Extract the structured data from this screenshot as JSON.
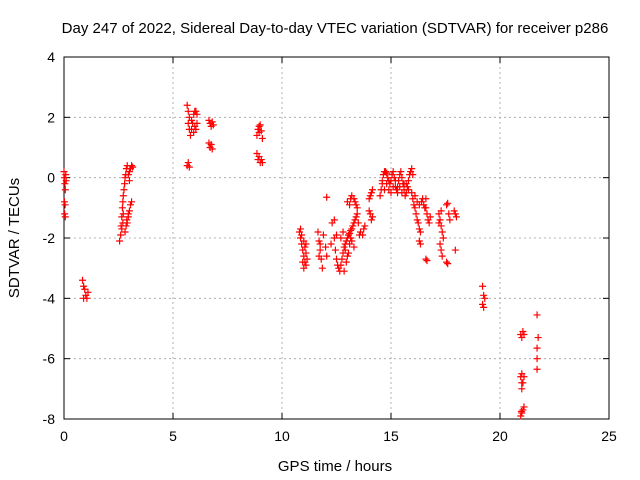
{
  "chart_data": {
    "type": "scatter",
    "title": "Day 247 of 2022, Sidereal Day-to-day VTEC variation (SDTVAR) for receiver p286",
    "xlabel": "GPS time / hours",
    "ylabel": "SDTVAR / TECUs",
    "xlim": [
      0,
      25
    ],
    "ylim": [
      -8,
      4
    ],
    "xticks": [
      0,
      5,
      10,
      15,
      20,
      25
    ],
    "yticks": [
      -8,
      -6,
      -4,
      -2,
      0,
      2,
      4
    ],
    "grid": true,
    "marker": "plus",
    "color": "#ff0000",
    "series": [
      {
        "name": "SDTVAR",
        "points": [
          [
            0.0,
            0.2
          ],
          [
            0.02,
            0.0
          ],
          [
            0.04,
            -0.2
          ],
          [
            0.06,
            -0.4
          ],
          [
            0.02,
            -0.8
          ],
          [
            0.05,
            -0.9
          ],
          [
            0.03,
            -1.2
          ],
          [
            0.06,
            -1.3
          ],
          [
            0.08,
            0.1
          ],
          [
            0.1,
            -0.1
          ],
          [
            0.85,
            -3.4
          ],
          [
            0.9,
            -3.6
          ],
          [
            0.95,
            -3.7
          ],
          [
            1.0,
            -3.9
          ],
          [
            1.05,
            -4.0
          ],
          [
            0.9,
            -4.0
          ],
          [
            1.1,
            -3.8
          ],
          [
            2.55,
            -2.1
          ],
          [
            2.6,
            -1.9
          ],
          [
            2.62,
            -1.6
          ],
          [
            2.65,
            -1.3
          ],
          [
            2.68,
            -1.0
          ],
          [
            2.7,
            -0.8
          ],
          [
            2.72,
            -0.6
          ],
          [
            2.75,
            -0.4
          ],
          [
            2.78,
            -0.2
          ],
          [
            2.8,
            0.0
          ],
          [
            2.83,
            0.1
          ],
          [
            2.86,
            0.3
          ],
          [
            2.9,
            0.4
          ],
          [
            2.65,
            -1.7
          ],
          [
            2.7,
            -1.5
          ],
          [
            2.72,
            -1.2
          ],
          [
            2.8,
            -1.8
          ],
          [
            2.85,
            -1.6
          ],
          [
            2.9,
            -1.5
          ],
          [
            2.95,
            -1.3
          ],
          [
            3.0,
            -1.1
          ],
          [
            3.05,
            -0.9
          ],
          [
            3.1,
            -0.8
          ],
          [
            2.88,
            -1.4
          ],
          [
            2.95,
            -1.2
          ],
          [
            3.0,
            0.2
          ],
          [
            3.05,
            0.3
          ],
          [
            3.1,
            0.4
          ],
          [
            3.15,
            0.35
          ],
          [
            2.95,
            0.1
          ],
          [
            3.0,
            -0.1
          ],
          [
            5.65,
            0.4
          ],
          [
            5.7,
            0.5
          ],
          [
            5.75,
            0.35
          ],
          [
            5.65,
            2.4
          ],
          [
            5.7,
            2.2
          ],
          [
            5.75,
            2.0
          ],
          [
            5.7,
            1.8
          ],
          [
            5.75,
            1.6
          ],
          [
            5.8,
            1.4
          ],
          [
            5.85,
            1.6
          ],
          [
            5.9,
            1.8
          ],
          [
            5.95,
            2.1
          ],
          [
            6.0,
            2.2
          ],
          [
            6.05,
            2.2
          ],
          [
            6.1,
            2.1
          ],
          [
            5.95,
            1.5
          ],
          [
            6.0,
            1.7
          ],
          [
            6.05,
            1.6
          ],
          [
            6.1,
            1.8
          ],
          [
            5.85,
            1.9
          ],
          [
            6.65,
            1.9
          ],
          [
            6.7,
            1.8
          ],
          [
            6.75,
            1.7
          ],
          [
            6.8,
            1.85
          ],
          [
            6.85,
            1.75
          ],
          [
            6.65,
            1.15
          ],
          [
            6.7,
            1.0
          ],
          [
            6.75,
            1.1
          ],
          [
            6.8,
            0.95
          ],
          [
            8.85,
            1.4
          ],
          [
            8.9,
            1.6
          ],
          [
            8.95,
            1.7
          ],
          [
            9.0,
            1.75
          ],
          [
            9.05,
            1.55
          ],
          [
            9.1,
            1.3
          ],
          [
            8.95,
            1.5
          ],
          [
            8.85,
            0.8
          ],
          [
            8.9,
            0.6
          ],
          [
            8.95,
            0.7
          ],
          [
            9.0,
            0.5
          ],
          [
            9.05,
            0.6
          ],
          [
            9.1,
            0.5
          ],
          [
            10.8,
            -1.8
          ],
          [
            10.85,
            -2.0
          ],
          [
            10.9,
            -2.2
          ],
          [
            10.95,
            -2.4
          ],
          [
            11.0,
            -2.6
          ],
          [
            11.05,
            -2.8
          ],
          [
            11.1,
            -2.9
          ],
          [
            10.85,
            -1.7
          ],
          [
            10.9,
            -1.9
          ],
          [
            11.0,
            -2.1
          ],
          [
            11.05,
            -2.3
          ],
          [
            11.1,
            -2.5
          ],
          [
            11.15,
            -2.7
          ],
          [
            10.95,
            -2.8
          ],
          [
            11.0,
            -3.0
          ],
          [
            11.1,
            -2.2
          ],
          [
            11.65,
            -1.8
          ],
          [
            11.7,
            -2.1
          ],
          [
            11.75,
            -2.4
          ],
          [
            11.8,
            -2.7
          ],
          [
            11.85,
            -3.0
          ],
          [
            11.7,
            -2.6
          ],
          [
            11.75,
            -2.2
          ],
          [
            11.9,
            -1.9
          ],
          [
            12.0,
            -2.3
          ],
          [
            12.05,
            -2.6
          ],
          [
            12.05,
            -0.65
          ],
          [
            12.3,
            -1.5
          ],
          [
            12.4,
            -2.0
          ],
          [
            12.45,
            -2.4
          ],
          [
            12.5,
            -2.7
          ],
          [
            12.55,
            -2.9
          ],
          [
            12.6,
            -3.0
          ],
          [
            12.65,
            -3.1
          ],
          [
            12.7,
            -2.9
          ],
          [
            12.75,
            -2.7
          ],
          [
            12.8,
            -2.5
          ],
          [
            12.85,
            -2.3
          ],
          [
            12.9,
            -2.2
          ],
          [
            12.95,
            -2.1
          ],
          [
            13.0,
            -2.0
          ],
          [
            13.05,
            -1.9
          ],
          [
            13.1,
            -1.85
          ],
          [
            13.15,
            -1.75
          ],
          [
            13.2,
            -1.7
          ],
          [
            13.25,
            -1.6
          ],
          [
            13.3,
            -1.5
          ],
          [
            13.35,
            -1.4
          ],
          [
            13.4,
            -1.3
          ],
          [
            13.45,
            -1.2
          ],
          [
            13.5,
            -1.5
          ],
          [
            13.55,
            -1.9
          ],
          [
            12.7,
            -2.0
          ],
          [
            12.8,
            -1.8
          ],
          [
            12.9,
            -2.4
          ],
          [
            13.0,
            -2.6
          ],
          [
            13.1,
            -2.2
          ],
          [
            13.2,
            -2.1
          ],
          [
            13.3,
            -2.3
          ],
          [
            12.85,
            -3.1
          ],
          [
            12.95,
            -2.8
          ],
          [
            13.05,
            -2.5
          ],
          [
            13.15,
            -2.0
          ],
          [
            12.5,
            -1.9
          ],
          [
            12.4,
            -1.4
          ],
          [
            12.25,
            -2.2
          ],
          [
            13.0,
            -0.8
          ],
          [
            13.1,
            -0.9
          ],
          [
            13.15,
            -0.7
          ],
          [
            13.2,
            -0.6
          ],
          [
            13.3,
            -0.7
          ],
          [
            13.35,
            -0.8
          ],
          [
            13.4,
            -0.9
          ],
          [
            13.45,
            -1.0
          ],
          [
            13.6,
            -1.8
          ],
          [
            13.7,
            -1.9
          ],
          [
            13.75,
            -1.7
          ],
          [
            13.8,
            -1.6
          ],
          [
            14.0,
            -1.1
          ],
          [
            14.05,
            -1.2
          ],
          [
            14.1,
            -1.4
          ],
          [
            14.15,
            -1.3
          ],
          [
            14.05,
            -0.6
          ],
          [
            14.1,
            -0.5
          ],
          [
            14.15,
            -0.4
          ],
          [
            14.0,
            -0.7
          ],
          [
            14.5,
            -0.6
          ],
          [
            14.55,
            -0.4
          ],
          [
            14.6,
            -0.1
          ],
          [
            14.65,
            0.1
          ],
          [
            14.7,
            0.2
          ],
          [
            14.75,
            0.2
          ],
          [
            14.8,
            0.15
          ],
          [
            14.85,
            0.0
          ],
          [
            14.9,
            -0.1
          ],
          [
            14.95,
            -0.2
          ],
          [
            15.0,
            -0.1
          ],
          [
            15.05,
            0.1
          ],
          [
            15.1,
            0.2
          ],
          [
            15.15,
            0.0
          ],
          [
            15.2,
            -0.3
          ],
          [
            15.25,
            -0.4
          ],
          [
            15.3,
            -0.3
          ],
          [
            15.35,
            -0.1
          ],
          [
            15.4,
            0.1
          ],
          [
            15.45,
            0.2
          ],
          [
            15.5,
            0.0
          ],
          [
            15.55,
            -0.2
          ],
          [
            15.6,
            -0.4
          ],
          [
            15.65,
            -0.6
          ],
          [
            15.7,
            -0.5
          ],
          [
            15.75,
            -0.3
          ],
          [
            15.8,
            -0.1
          ],
          [
            15.85,
            0.1
          ],
          [
            15.9,
            0.2
          ],
          [
            15.95,
            0.3
          ],
          [
            16.0,
            0.1
          ],
          [
            14.6,
            -0.2
          ],
          [
            14.7,
            -0.4
          ],
          [
            14.8,
            -0.2
          ],
          [
            14.9,
            -0.4
          ],
          [
            15.0,
            -0.5
          ],
          [
            15.1,
            -0.3
          ],
          [
            15.2,
            -0.1
          ],
          [
            15.3,
            -0.5
          ],
          [
            15.4,
            -0.3
          ],
          [
            15.5,
            -0.5
          ],
          [
            15.6,
            -0.2
          ],
          [
            15.7,
            -0.2
          ],
          [
            15.8,
            -0.4
          ],
          [
            15.95,
            -0.5
          ],
          [
            16.0,
            -0.7
          ],
          [
            16.05,
            -0.9
          ],
          [
            16.1,
            -1.0
          ],
          [
            16.15,
            -1.2
          ],
          [
            16.2,
            -1.4
          ],
          [
            16.25,
            -1.5
          ],
          [
            16.3,
            -1.7
          ],
          [
            16.35,
            -1.8
          ],
          [
            16.1,
            -0.6
          ],
          [
            16.2,
            -0.8
          ],
          [
            16.3,
            -0.9
          ],
          [
            16.4,
            -0.8
          ],
          [
            16.45,
            -0.7
          ],
          [
            16.5,
            -0.9
          ],
          [
            16.55,
            -1.0
          ],
          [
            16.6,
            -0.7
          ],
          [
            16.3,
            -2.1
          ],
          [
            16.35,
            -2.2
          ],
          [
            16.6,
            -2.7
          ],
          [
            16.65,
            -2.75
          ],
          [
            16.6,
            -1.0
          ],
          [
            16.65,
            -1.2
          ],
          [
            16.7,
            -1.4
          ],
          [
            16.75,
            -1.5
          ],
          [
            16.8,
            -1.3
          ],
          [
            17.2,
            -1.2
          ],
          [
            17.25,
            -1.4
          ],
          [
            17.3,
            -1.6
          ],
          [
            17.35,
            -1.8
          ],
          [
            17.4,
            -2.0
          ],
          [
            17.25,
            -2.2
          ],
          [
            17.3,
            -2.4
          ],
          [
            17.35,
            -2.6
          ],
          [
            17.2,
            -1.5
          ],
          [
            17.3,
            -1.1
          ],
          [
            17.55,
            -0.9
          ],
          [
            17.6,
            -0.85
          ],
          [
            17.65,
            -1.2
          ],
          [
            17.7,
            -1.4
          ],
          [
            17.55,
            -2.8
          ],
          [
            17.6,
            -2.85
          ],
          [
            17.9,
            -1.1
          ],
          [
            17.95,
            -1.2
          ],
          [
            18.0,
            -1.3
          ],
          [
            17.95,
            -2.4
          ],
          [
            19.2,
            -3.6
          ],
          [
            19.25,
            -3.9
          ],
          [
            19.3,
            -4.0
          ],
          [
            19.2,
            -4.2
          ],
          [
            19.25,
            -4.3
          ],
          [
            20.95,
            -5.2
          ],
          [
            21.0,
            -5.3
          ],
          [
            21.05,
            -5.1
          ],
          [
            21.1,
            -5.2
          ],
          [
            20.95,
            -6.6
          ],
          [
            21.0,
            -6.5
          ],
          [
            21.05,
            -6.8
          ],
          [
            21.0,
            -7.0
          ],
          [
            21.1,
            -6.6
          ],
          [
            21.0,
            -6.8
          ],
          [
            20.95,
            -7.9
          ],
          [
            21.0,
            -7.8
          ],
          [
            21.05,
            -7.7
          ],
          [
            21.1,
            -7.6
          ],
          [
            20.98,
            -7.75
          ],
          [
            21.7,
            -4.55
          ],
          [
            21.75,
            -5.3
          ],
          [
            21.7,
            -5.65
          ],
          [
            21.7,
            -6.0
          ],
          [
            21.7,
            -6.35
          ]
        ]
      }
    ]
  }
}
